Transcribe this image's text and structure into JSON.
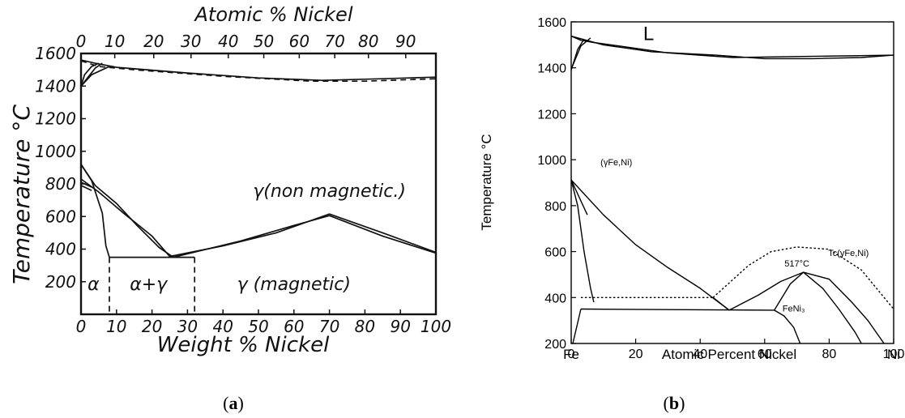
{
  "panels": {
    "a": {
      "caption_open": "(",
      "caption_letter": "a",
      "caption_close": ")"
    },
    "b": {
      "caption_open": "(",
      "caption_letter": "b",
      "caption_close": ")"
    }
  },
  "chart_data": [
    {
      "type": "line",
      "title": "",
      "top_axis_label": "Atomic % Nickel",
      "top_ticks": [
        "0",
        "10",
        "20",
        "30",
        "40",
        "50",
        "60",
        "70",
        "80",
        "90"
      ],
      "top_tick_positions": [
        0,
        9.5,
        20.5,
        31,
        41.5,
        51.5,
        61.5,
        71.5,
        81,
        91.5
      ],
      "xlabel": "Weight % Nickel",
      "x_ticks": [
        "0",
        "10",
        "20",
        "30",
        "40",
        "50",
        "60",
        "70",
        "80",
        "90",
        "100"
      ],
      "x_tick_values": [
        0,
        10,
        20,
        30,
        40,
        50,
        60,
        70,
        80,
        90,
        100
      ],
      "xlim": [
        0,
        100
      ],
      "ylabel": "Temperature °C",
      "y_ticks": [
        "200",
        "400",
        "600",
        "800",
        "1000",
        "1200",
        "1400",
        "1600"
      ],
      "y_tick_values": [
        200,
        400,
        600,
        800,
        1000,
        1200,
        1400,
        1600
      ],
      "ylim": [
        0,
        1600
      ],
      "region_labels": [
        {
          "text": "α",
          "x": 3.5,
          "y": 150
        },
        {
          "text": "α+γ",
          "x": 19,
          "y": 150
        },
        {
          "text": "γ (magnetic)",
          "x": 60,
          "y": 150
        },
        {
          "text": "γ(non magnetic.)",
          "x": 70,
          "y": 720
        }
      ],
      "series": [
        {
          "style": "solid",
          "points": [
            [
              0,
              1560
            ],
            [
              4,
              1540
            ],
            [
              10,
              1515
            ],
            [
              30,
              1480
            ],
            [
              50,
              1450
            ],
            [
              68,
              1435
            ],
            [
              85,
              1445
            ],
            [
              100,
              1455
            ]
          ]
        },
        {
          "style": "dashed",
          "points": [
            [
              0,
              1555
            ],
            [
              5,
              1520
            ],
            [
              15,
              1500
            ],
            [
              40,
              1460
            ],
            [
              65,
              1430
            ],
            [
              80,
              1430
            ],
            [
              100,
              1445
            ]
          ]
        },
        {
          "style": "solid",
          "points": [
            [
              0,
              1400
            ],
            [
              1,
              1470
            ],
            [
              3,
              1520
            ],
            [
              5,
              1540
            ]
          ]
        },
        {
          "style": "solid",
          "points": [
            [
              0,
              1400
            ],
            [
              2,
              1455
            ],
            [
              4,
              1510
            ],
            [
              6,
              1540
            ]
          ]
        },
        {
          "style": "solid",
          "points": [
            [
              0,
              1400
            ],
            [
              3,
              1470
            ],
            [
              8,
              1520
            ]
          ]
        },
        {
          "style": "solid",
          "points": [
            [
              0,
              920
            ],
            [
              3,
              820
            ],
            [
              6,
              620
            ],
            [
              7,
              420
            ],
            [
              8,
              350
            ]
          ]
        },
        {
          "style": "solid",
          "points": [
            [
              0,
              920
            ],
            [
              4,
              790
            ],
            [
              10,
              680
            ],
            [
              16,
              540
            ],
            [
              22,
              410
            ],
            [
              26,
              350
            ]
          ]
        },
        {
          "style": "solid",
          "points": [
            [
              0,
              830
            ],
            [
              5,
              750
            ],
            [
              12,
              620
            ],
            [
              20,
              480
            ],
            [
              25,
              355
            ]
          ]
        },
        {
          "style": "solid",
          "points": [
            [
              0,
              790
            ],
            [
              3,
              760
            ]
          ]
        },
        {
          "style": "solid",
          "points": [
            [
              0,
              810
            ],
            [
              3,
              780
            ]
          ]
        },
        {
          "style": "solid",
          "points": [
            [
              8,
              350
            ],
            [
              32,
              350
            ]
          ]
        },
        {
          "style": "solid",
          "points": [
            [
              25,
              355
            ],
            [
              40,
              420
            ],
            [
              55,
              500
            ],
            [
              70,
              615
            ],
            [
              85,
              500
            ],
            [
              100,
              380
            ]
          ]
        },
        {
          "style": "solid",
          "points": [
            [
              26,
              350
            ],
            [
              45,
              450
            ],
            [
              60,
              545
            ],
            [
              70,
              605
            ],
            [
              85,
              480
            ],
            [
              100,
              375
            ]
          ]
        },
        {
          "style": "dashed",
          "points": [
            [
              8,
              350
            ],
            [
              8,
              0
            ]
          ]
        },
        {
          "style": "dashed",
          "points": [
            [
              32,
              350
            ],
            [
              32,
              0
            ]
          ]
        }
      ]
    },
    {
      "type": "line",
      "title": "",
      "xlabel": "Atomic Percent Nickel",
      "x_ticks": [
        "0",
        "20",
        "40",
        "60",
        "80",
        "100"
      ],
      "x_tick_values": [
        0,
        20,
        40,
        60,
        80,
        100
      ],
      "x_end_labels": [
        "Fe",
        "Ni"
      ],
      "xlim": [
        0,
        100
      ],
      "ylabel": "Temperature °C",
      "y_ticks": [
        "200",
        "400",
        "600",
        "800",
        "1000",
        "1200",
        "1400",
        "1600"
      ],
      "y_tick_values": [
        200,
        400,
        600,
        800,
        1000,
        1200,
        1400,
        1600
      ],
      "ylim": [
        200,
        1600
      ],
      "region_labels": [
        {
          "text": "L",
          "x": 24,
          "y": 1520,
          "size": "large"
        },
        {
          "text": "(γFe,Ni)",
          "x": 14,
          "y": 975,
          "size": "small"
        },
        {
          "text": "FeNi₃",
          "x": 69,
          "y": 340,
          "size": "small"
        },
        {
          "text": "517°C",
          "x": 70,
          "y": 535,
          "size": "small"
        },
        {
          "text": "Tc(γFe,Ni)",
          "x": 86,
          "y": 580,
          "size": "small"
        }
      ],
      "series": [
        {
          "style": "solid",
          "points": [
            [
              0,
              1538
            ],
            [
              10,
              1500
            ],
            [
              25,
              1470
            ],
            [
              45,
              1455
            ],
            [
              60,
              1440
            ],
            [
              75,
              1440
            ],
            [
              90,
              1445
            ],
            [
              100,
              1455
            ]
          ]
        },
        {
          "style": "solid",
          "points": [
            [
              0,
              1538
            ],
            [
              3,
              1520
            ],
            [
              7,
              1510
            ],
            [
              15,
              1495
            ],
            [
              30,
              1465
            ],
            [
              50,
              1445
            ],
            [
              100,
              1455
            ]
          ]
        },
        {
          "style": "solid",
          "points": [
            [
              0,
              1390
            ],
            [
              2,
              1480
            ],
            [
              4,
              1525
            ]
          ]
        },
        {
          "style": "solid",
          "points": [
            [
              0,
              1394
            ],
            [
              3,
              1495
            ],
            [
              6,
              1530
            ]
          ]
        },
        {
          "style": "solid",
          "points": [
            [
              0,
              912
            ],
            [
              2,
              800
            ],
            [
              4,
              600
            ],
            [
              6,
              440
            ],
            [
              7,
              380
            ]
          ]
        },
        {
          "style": "solid",
          "points": [
            [
              0,
              912
            ],
            [
              10,
              760
            ],
            [
              20,
              630
            ],
            [
              30,
              530
            ],
            [
              40,
              440
            ],
            [
              49,
              345
            ]
          ]
        },
        {
          "style": "solid",
          "points": [
            [
              0,
              912
            ],
            [
              5,
              760
            ]
          ]
        },
        {
          "style": "solid",
          "points": [
            [
              3,
              350
            ],
            [
              63,
              345
            ]
          ]
        },
        {
          "style": "solid",
          "points": [
            [
              3,
              350
            ],
            [
              2,
              290
            ],
            [
              1,
              230
            ],
            [
              0.5,
              200
            ]
          ]
        },
        {
          "style": "solid",
          "points": [
            [
              44,
              400
            ],
            [
              49,
              345
            ]
          ]
        },
        {
          "style": "dotted",
          "points": [
            [
              3,
              400
            ],
            [
              44,
              400
            ]
          ]
        },
        {
          "style": "dotted",
          "points": [
            [
              44,
              400
            ],
            [
              55,
              540
            ],
            [
              62,
              600
            ],
            [
              70,
              620
            ],
            [
              80,
              610
            ],
            [
              90,
              520
            ],
            [
              100,
              350
            ]
          ]
        },
        {
          "style": "solid",
          "points": [
            [
              49,
              345
            ],
            [
              58,
              410
            ],
            [
              65,
              470
            ],
            [
              72,
              510
            ],
            [
              80,
              480
            ],
            [
              87,
              380
            ],
            [
              92,
              300
            ],
            [
              97,
              200
            ]
          ]
        },
        {
          "style": "solid",
          "points": [
            [
              63,
              345
            ],
            [
              68,
              460
            ],
            [
              72,
              510
            ],
            [
              78,
              440
            ],
            [
              83,
              350
            ],
            [
              88,
              250
            ],
            [
              90,
              200
            ]
          ]
        },
        {
          "style": "solid",
          "points": [
            [
              63,
              345
            ],
            [
              66,
              320
            ],
            [
              69,
              270
            ],
            [
              71,
              200
            ]
          ]
        }
      ]
    }
  ]
}
